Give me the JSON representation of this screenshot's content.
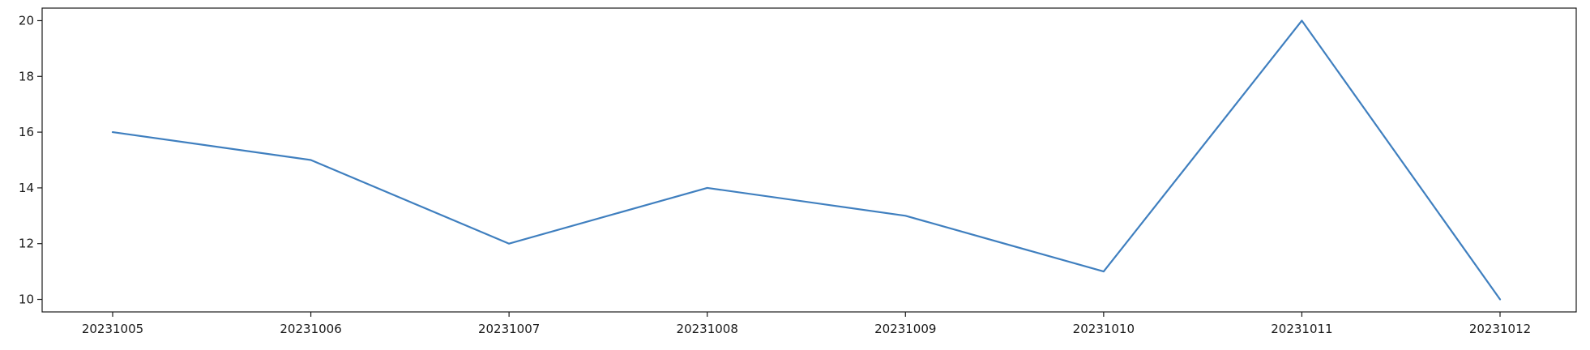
{
  "chart_data": {
    "type": "line",
    "title": "",
    "xlabel": "",
    "ylabel": "",
    "categories": [
      "20231005",
      "20231006",
      "20231007",
      "20231008",
      "20231009",
      "20231010",
      "20231011",
      "20231012"
    ],
    "series": [
      {
        "values": [
          16,
          15,
          12,
          14,
          13,
          11,
          20,
          10
        ],
        "color": "#3f7fbf"
      }
    ],
    "ylim": [
      9.55,
      20.45
    ],
    "yticks": [
      10,
      12,
      14,
      16,
      18,
      20
    ],
    "grid": false,
    "legend": "none"
  }
}
